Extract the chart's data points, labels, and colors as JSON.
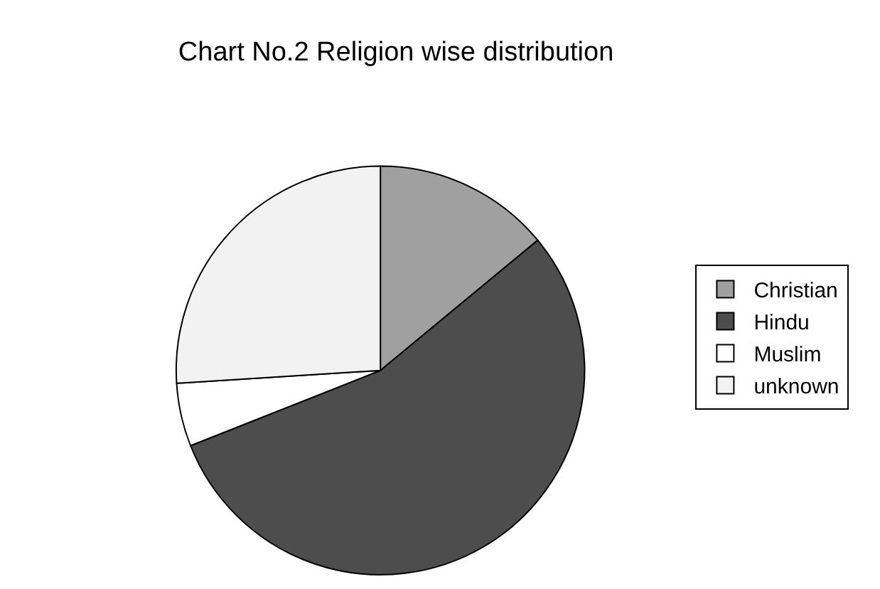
{
  "chart_data": {
    "type": "pie",
    "title": "Chart No.2 Religion wise distribution",
    "categories": [
      "Christian",
      "Hindu",
      "Muslim",
      "unknown"
    ],
    "values": [
      14,
      55,
      5,
      26
    ],
    "colors": [
      "#a0a0a0",
      "#4d4d4d",
      "#ffffff",
      "#f2f2f2"
    ],
    "legend": "right"
  }
}
